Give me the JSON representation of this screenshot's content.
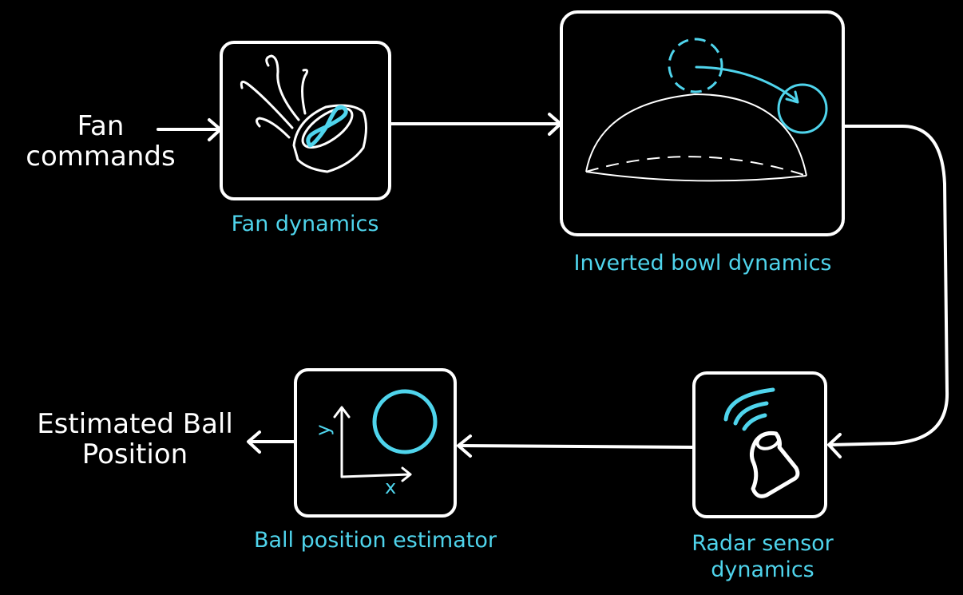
{
  "input_label": [
    "Fan",
    "commands"
  ],
  "output_label": [
    "Estimated Ball",
    "Position"
  ],
  "blocks": {
    "fan": {
      "caption": "Fan dynamics"
    },
    "bowl": {
      "caption": "Inverted bowl dynamics"
    },
    "radar": {
      "caption": [
        "Radar sensor",
        "dynamics"
      ]
    },
    "estimator": {
      "caption": "Ball position estimator",
      "axis_x": "x",
      "axis_y": "y"
    }
  },
  "colors": {
    "line": "#ffffff",
    "accent": "#4fd4ec",
    "background": "#000000"
  }
}
